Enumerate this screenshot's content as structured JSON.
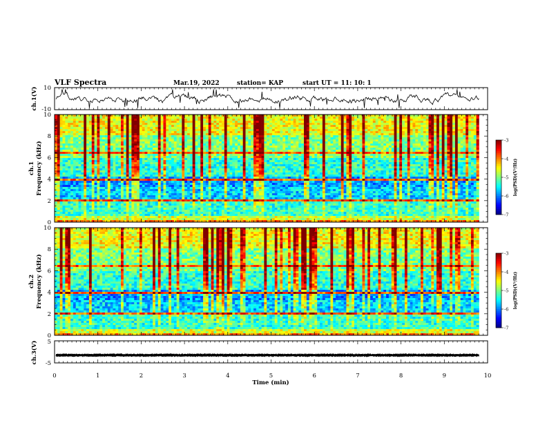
{
  "header": {
    "title": "VLF Spectra",
    "date": "Mar.19, 2022",
    "station": "station= KAP",
    "start_ut": "start  UT =   11: 10: 1"
  },
  "chart_data": [
    {
      "type": "line",
      "name_label": "ch.1(V)",
      "ylim": [
        -10,
        10
      ],
      "ytick_labels": [
        "10",
        "-10"
      ],
      "xlim": [
        0,
        10
      ],
      "series_shape": "noisy waveform around 0 V, amplitude roughly within ±6 V"
    },
    {
      "type": "heatmap",
      "ylabel": "ch.1\nFrequency (kHz)",
      "ylabel_line1": "ch.1",
      "ylabel_line2": "Frequency (kHz)",
      "ylim": [
        0,
        10
      ],
      "ytick_labels": [
        "0",
        "2",
        "4",
        "6",
        "8",
        "10"
      ],
      "xlim": [
        0,
        10
      ],
      "data_end_min": 9.8,
      "colorbar": {
        "range": [
          -7,
          -3
        ],
        "tick_labels": [
          "-3",
          "-4",
          "-5",
          "-6",
          "-7"
        ],
        "label": "log(PSD)(V²/Hz)"
      }
    },
    {
      "type": "heatmap",
      "ylabel": "ch.2\nFrequency (kHz)",
      "ylabel_line1": "ch.2",
      "ylabel_line2": "Frequency (kHz)",
      "ylim": [
        0,
        10
      ],
      "ytick_labels": [
        "0",
        "2",
        "4",
        "6",
        "8",
        "10"
      ],
      "xlim": [
        0,
        10
      ],
      "data_end_min": 9.8,
      "colorbar": {
        "range": [
          -7,
          -3
        ],
        "tick_labels": [
          "-3",
          "-4",
          "-5",
          "-6",
          "-7"
        ],
        "label": "log(PSD)(V²/Hz)"
      }
    },
    {
      "type": "line",
      "name_label": "ch.3(V)",
      "ylim": [
        -5,
        5
      ],
      "ytick_labels": [
        "5",
        "-5"
      ],
      "xlim": [
        0,
        10
      ],
      "xlabel": "Time (min)",
      "xtick_labels": [
        "0",
        "1",
        "2",
        "3",
        "4",
        "5",
        "6",
        "7",
        "8",
        "9",
        "10"
      ],
      "series_shape": "dense rapid oscillation between about -1 and -2 V"
    }
  ],
  "colors": {
    "axis": "#000000",
    "background": "#ffffff"
  }
}
